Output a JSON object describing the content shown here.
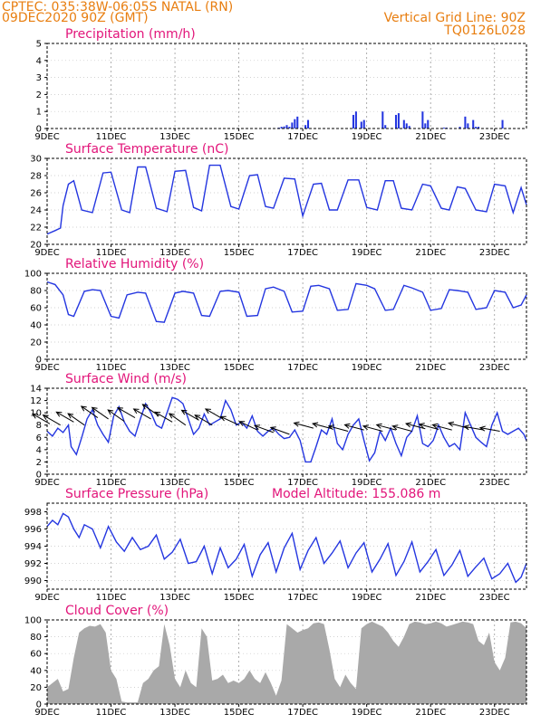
{
  "header": {
    "line1": "CPTEC:   035:38W-06:05S   NATAL (RN)",
    "line2": "09DEC2020 90Z (GMT)",
    "right1": "Vertical Grid Line: 90Z",
    "right2": "TQ0126L028"
  },
  "colors": {
    "series": "#2436e0",
    "cloud": "#a9a9a9",
    "title": "#e2157a",
    "header": "#e87e10"
  },
  "chart_data": [
    {
      "type": "bar",
      "title": "Precipitation (mm/h)",
      "x_range": [
        0,
        180
      ],
      "ylim": [
        0,
        5
      ],
      "yticks": [
        0,
        1,
        2,
        3,
        4,
        5
      ],
      "x_ticks": [
        {
          "x": 0,
          "label": "9DEC"
        },
        {
          "x": 24,
          "label": "11DEC"
        },
        {
          "x": 48,
          "label": "13DEC"
        },
        {
          "x": 72,
          "label": "15DEC"
        },
        {
          "x": 96,
          "label": "17DEC"
        },
        {
          "x": 120,
          "label": "19DEC"
        },
        {
          "x": 144,
          "label": "21DEC"
        },
        {
          "x": 168,
          "label": "23DEC"
        }
      ],
      "grid": "vertical dashed",
      "x": [
        87,
        88,
        89,
        90,
        91,
        92,
        93,
        94,
        97,
        98,
        115,
        116,
        118,
        119,
        126,
        127,
        131,
        132,
        134,
        135,
        136,
        141,
        142,
        143,
        149,
        150,
        155,
        157,
        158,
        160,
        161,
        162,
        171
      ],
      "values": [
        0.05,
        0.1,
        0.12,
        0.2,
        0.1,
        0.35,
        0.55,
        0.7,
        0.2,
        0.5,
        0.8,
        1.0,
        0.4,
        0.5,
        1.0,
        0.2,
        0.8,
        0.9,
        0.5,
        0.3,
        0.15,
        1.0,
        0.3,
        0.5,
        0.05,
        0.05,
        0.1,
        0.7,
        0.3,
        0.5,
        0.1,
        0.1,
        0.5
      ]
    },
    {
      "type": "line",
      "title": "Surface Temperature (nC)",
      "x_range": [
        0,
        180
      ],
      "ylim": [
        20,
        30
      ],
      "yticks": [
        20,
        22,
        24,
        26,
        28,
        30
      ],
      "x_ticks": [
        {
          "x": 0,
          "label": "9DEC"
        },
        {
          "x": 24,
          "label": "11DEC"
        },
        {
          "x": 48,
          "label": "13DEC"
        },
        {
          "x": 72,
          "label": "15DEC"
        },
        {
          "x": 96,
          "label": "17DEC"
        },
        {
          "x": 120,
          "label": "19DEC"
        },
        {
          "x": 144,
          "label": "21DEC"
        },
        {
          "x": 168,
          "label": "23DEC"
        }
      ],
      "grid": "vertical dashed",
      "x": [
        0,
        3,
        5,
        6,
        8,
        10,
        13,
        17,
        21,
        24,
        28,
        31,
        34,
        37,
        41,
        45,
        48,
        52,
        55,
        58,
        61,
        65,
        69,
        72,
        76,
        79,
        82,
        85,
        89,
        93,
        96,
        100,
        103,
        106,
        109,
        113,
        117,
        120,
        124,
        127,
        130,
        133,
        137,
        141,
        144,
        148,
        151,
        154,
        157,
        161,
        165,
        168,
        172,
        175,
        178,
        180
      ],
      "values": [
        21.2,
        21.6,
        21.9,
        24.5,
        27.0,
        27.4,
        24.0,
        23.7,
        28.3,
        28.4,
        24.0,
        23.7,
        29.0,
        29.0,
        24.2,
        23.8,
        28.5,
        28.6,
        24.3,
        23.9,
        29.2,
        29.2,
        24.4,
        24.1,
        28.0,
        28.1,
        24.4,
        24.2,
        27.7,
        27.6,
        23.3,
        27.0,
        27.1,
        24.0,
        24.0,
        27.5,
        27.5,
        24.3,
        24.0,
        27.4,
        27.4,
        24.2,
        24.0,
        27.0,
        26.8,
        24.2,
        24.0,
        26.7,
        26.5,
        24.0,
        23.8,
        27.0,
        26.8,
        23.7,
        26.6,
        24.6
      ]
    },
    {
      "type": "line",
      "title": "Relative Humidity (%)",
      "x_range": [
        0,
        180
      ],
      "ylim": [
        0,
        100
      ],
      "yticks": [
        0,
        20,
        40,
        60,
        80,
        100
      ],
      "x_ticks": [
        {
          "x": 0,
          "label": "9DEC"
        },
        {
          "x": 24,
          "label": "11DEC"
        },
        {
          "x": 48,
          "label": "13DEC"
        },
        {
          "x": 72,
          "label": "15DEC"
        },
        {
          "x": 96,
          "label": "17DEC"
        },
        {
          "x": 120,
          "label": "19DEC"
        },
        {
          "x": 144,
          "label": "21DEC"
        },
        {
          "x": 168,
          "label": "23DEC"
        }
      ],
      "grid": "vertical dashed",
      "x": [
        0,
        3,
        6,
        8,
        10,
        14,
        17,
        20,
        24,
        27,
        30,
        34,
        37,
        41,
        44,
        48,
        51,
        55,
        58,
        61,
        65,
        68,
        72,
        75,
        79,
        82,
        85,
        89,
        92,
        96,
        99,
        102,
        106,
        109,
        113,
        116,
        120,
        123,
        127,
        130,
        134,
        137,
        141,
        144,
        148,
        151,
        154,
        158,
        161,
        165,
        168,
        172,
        175,
        178,
        180
      ],
      "values": [
        90,
        87,
        75,
        52,
        50,
        79,
        81,
        80,
        50,
        48,
        75,
        78,
        77,
        44,
        43,
        77,
        79,
        77,
        51,
        50,
        79,
        80,
        78,
        50,
        51,
        82,
        84,
        79,
        55,
        56,
        85,
        86,
        82,
        57,
        58,
        88,
        86,
        82,
        57,
        58,
        86,
        83,
        78,
        57,
        59,
        81,
        80,
        78,
        58,
        60,
        80,
        78,
        60,
        63,
        75
      ]
    },
    {
      "type": "line",
      "title": "Surface Wind (m/s)",
      "x_range": [
        0,
        180
      ],
      "ylim": [
        0,
        14
      ],
      "yticks": [
        0,
        2,
        4,
        6,
        8,
        10,
        12,
        14
      ],
      "x_ticks": [
        {
          "x": 0,
          "label": "9DEC"
        },
        {
          "x": 24,
          "label": "11DEC"
        },
        {
          "x": 48,
          "label": "13DEC"
        },
        {
          "x": 72,
          "label": "15DEC"
        },
        {
          "x": 96,
          "label": "17DEC"
        },
        {
          "x": 120,
          "label": "19DEC"
        },
        {
          "x": 144,
          "label": "21DEC"
        },
        {
          "x": 168,
          "label": "23DEC"
        }
      ],
      "grid": "vertical dashed",
      "x": [
        0,
        2,
        4,
        6,
        8,
        9,
        11,
        13,
        15,
        17,
        19,
        21,
        23,
        25,
        27,
        29,
        31,
        33,
        35,
        37,
        39,
        41,
        43,
        45,
        47,
        49,
        51,
        53,
        55,
        57,
        59,
        61,
        63,
        65,
        67,
        69,
        71,
        73,
        75,
        77,
        79,
        81,
        83,
        85,
        87,
        89,
        91,
        93,
        95,
        97,
        99,
        101,
        103,
        105,
        107,
        109,
        111,
        113,
        115,
        117,
        119,
        121,
        123,
        125,
        127,
        129,
        131,
        133,
        135,
        137,
        139,
        141,
        143,
        145,
        147,
        149,
        151,
        153,
        155,
        157,
        159,
        161,
        163,
        165,
        167,
        169,
        171,
        173,
        175,
        177,
        179,
        180
      ],
      "values": [
        7.0,
        6.2,
        7.5,
        6.8,
        8.0,
        4.5,
        3.2,
        6.0,
        9.0,
        10.5,
        8.0,
        6.5,
        5.2,
        9.5,
        11.0,
        8.5,
        7.0,
        6.2,
        9.0,
        11.5,
        10.0,
        8.0,
        7.5,
        10.0,
        12.5,
        12.2,
        11.5,
        9.0,
        6.5,
        7.5,
        9.8,
        8.0,
        8.5,
        9.0,
        12.0,
        10.5,
        8.0,
        8.5,
        7.5,
        9.5,
        7.0,
        6.2,
        7.0,
        7.5,
        6.5,
        5.8,
        6.0,
        7.2,
        5.5,
        2.0,
        2.0,
        4.5,
        7.2,
        6.5,
        9.0,
        5.0,
        4.0,
        6.5,
        8.0,
        9.0,
        5.5,
        2.2,
        3.5,
        7.0,
        5.5,
        7.5,
        5.0,
        3.0,
        6.0,
        7.0,
        9.5,
        5.0,
        4.5,
        5.5,
        8.0,
        6.0,
        4.5,
        5.0,
        4.0,
        10.0,
        8.0,
        6.0,
        5.2,
        4.5,
        8.0,
        10.0,
        7.0,
        6.5,
        7.0,
        7.5,
        6.5,
        5.5
      ],
      "arrows_note": "wind direction vectors",
      "arrows": [
        {
          "x": 1,
          "y": 8.2,
          "dir_deg": 150
        },
        {
          "x": 5,
          "y": 8.0,
          "dir_deg": 150
        },
        {
          "x": 10,
          "y": 8.5,
          "dir_deg": 150
        },
        {
          "x": 14,
          "y": 8.0,
          "dir_deg": 145
        },
        {
          "x": 19,
          "y": 9.2,
          "dir_deg": 145
        },
        {
          "x": 23,
          "y": 9.0,
          "dir_deg": 145
        },
        {
          "x": 29,
          "y": 8.6,
          "dir_deg": 145
        },
        {
          "x": 33,
          "y": 9.2,
          "dir_deg": 150
        },
        {
          "x": 39,
          "y": 9.0,
          "dir_deg": 150
        },
        {
          "x": 42,
          "y": 9.5,
          "dir_deg": 145
        },
        {
          "x": 47,
          "y": 8.5,
          "dir_deg": 150
        },
        {
          "x": 52,
          "y": 8.0,
          "dir_deg": 145
        },
        {
          "x": 57,
          "y": 8.8,
          "dir_deg": 150
        },
        {
          "x": 62,
          "y": 8.0,
          "dir_deg": 150
        },
        {
          "x": 66,
          "y": 9.0,
          "dir_deg": 150
        },
        {
          "x": 72,
          "y": 8.0,
          "dir_deg": 155
        },
        {
          "x": 79,
          "y": 7.2,
          "dir_deg": 155
        },
        {
          "x": 85,
          "y": 6.8,
          "dir_deg": 160
        },
        {
          "x": 91,
          "y": 6.5,
          "dir_deg": 160
        },
        {
          "x": 100,
          "y": 7.5,
          "dir_deg": 165
        },
        {
          "x": 107,
          "y": 7.4,
          "dir_deg": 165
        },
        {
          "x": 113,
          "y": 7.0,
          "dir_deg": 165
        },
        {
          "x": 119,
          "y": 7.2,
          "dir_deg": 165
        },
        {
          "x": 126,
          "y": 7.0,
          "dir_deg": 165
        },
        {
          "x": 131,
          "y": 7.2,
          "dir_deg": 165
        },
        {
          "x": 137,
          "y": 7.0,
          "dir_deg": 165
        },
        {
          "x": 142,
          "y": 7.4,
          "dir_deg": 165
        },
        {
          "x": 147,
          "y": 7.3,
          "dir_deg": 165
        },
        {
          "x": 152,
          "y": 7.2,
          "dir_deg": 165
        },
        {
          "x": 158,
          "y": 7.5,
          "dir_deg": 165
        },
        {
          "x": 164,
          "y": 7.2,
          "dir_deg": 170
        },
        {
          "x": 170,
          "y": 7.0,
          "dir_deg": 170
        }
      ]
    },
    {
      "type": "line",
      "title": "Surface Pressure (hPa)",
      "annotation": "Model Altitude: 155.086 m",
      "x_range": [
        0,
        180
      ],
      "ylim": [
        989,
        999
      ],
      "yticks": [
        990,
        992,
        994,
        996,
        998
      ],
      "x_ticks": [
        {
          "x": 0,
          "label": "9DEC"
        },
        {
          "x": 24,
          "label": "11DEC"
        },
        {
          "x": 48,
          "label": "13DEC"
        },
        {
          "x": 72,
          "label": "15DEC"
        },
        {
          "x": 96,
          "label": "17DEC"
        },
        {
          "x": 120,
          "label": "19DEC"
        },
        {
          "x": 144,
          "label": "21DEC"
        },
        {
          "x": 168,
          "label": "23DEC"
        }
      ],
      "grid": "vertical dashed",
      "x": [
        0,
        2,
        4,
        6,
        8,
        10,
        12,
        14,
        17,
        20,
        23,
        26,
        29,
        32,
        35,
        38,
        41,
        44,
        47,
        50,
        53,
        56,
        59,
        62,
        65,
        68,
        71,
        74,
        77,
        80,
        83,
        86,
        89,
        92,
        95,
        98,
        101,
        104,
        107,
        110,
        113,
        116,
        119,
        122,
        125,
        128,
        131,
        134,
        137,
        140,
        143,
        146,
        149,
        152,
        155,
        158,
        161,
        164,
        167,
        170,
        173,
        176,
        178,
        180
      ],
      "values": [
        996.3,
        997.0,
        996.5,
        997.8,
        997.4,
        996.0,
        995.0,
        996.5,
        996.0,
        993.8,
        996.3,
        994.5,
        993.4,
        995.0,
        993.6,
        994.0,
        995.3,
        992.5,
        993.3,
        994.8,
        992.0,
        992.2,
        994.0,
        990.8,
        993.8,
        991.5,
        992.5,
        994.2,
        990.5,
        993.0,
        994.4,
        991.0,
        993.8,
        995.5,
        991.3,
        993.5,
        995.0,
        992.0,
        993.2,
        994.6,
        991.5,
        993.2,
        994.4,
        991.0,
        992.5,
        994.3,
        990.6,
        992.2,
        994.5,
        991.0,
        992.2,
        993.6,
        990.6,
        991.8,
        993.5,
        990.5,
        991.6,
        992.6,
        990.2,
        990.8,
        992.0,
        989.8,
        990.4,
        992.0
      ]
    },
    {
      "type": "area",
      "title": "Cloud Cover (%)",
      "x_range": [
        0,
        180
      ],
      "ylim": [
        0,
        100
      ],
      "yticks": [
        0,
        20,
        40,
        60,
        80,
        100
      ],
      "x_ticks": [
        {
          "x": 0,
          "label": "9DEC"
        },
        {
          "x": 24,
          "label": "11DEC"
        },
        {
          "x": 48,
          "label": "13DEC"
        },
        {
          "x": 72,
          "label": "15DEC"
        },
        {
          "x": 96,
          "label": "17DEC"
        },
        {
          "x": 120,
          "label": "19DEC"
        },
        {
          "x": 144,
          "label": "21DEC"
        },
        {
          "x": 168,
          "label": "23DEC"
        }
      ],
      "grid": "vertical dashed",
      "x": [
        0,
        2,
        4,
        6,
        8,
        10,
        12,
        14,
        16,
        18,
        20,
        22,
        24,
        26,
        28,
        30,
        32,
        34,
        36,
        38,
        40,
        42,
        44,
        46,
        48,
        50,
        52,
        54,
        56,
        58,
        60,
        62,
        64,
        66,
        68,
        70,
        72,
        74,
        76,
        78,
        80,
        82,
        84,
        86,
        88,
        90,
        92,
        94,
        96,
        98,
        100,
        102,
        104,
        106,
        108,
        110,
        112,
        114,
        116,
        118,
        120,
        122,
        124,
        126,
        128,
        130,
        132,
        134,
        136,
        138,
        140,
        142,
        144,
        146,
        148,
        150,
        152,
        154,
        156,
        158,
        160,
        162,
        164,
        166,
        168,
        170,
        172,
        174,
        176,
        178,
        180
      ],
      "values": [
        20,
        25,
        30,
        15,
        18,
        55,
        85,
        90,
        93,
        92,
        95,
        85,
        40,
        30,
        3,
        2,
        2,
        2,
        25,
        30,
        40,
        45,
        95,
        70,
        30,
        20,
        40,
        25,
        20,
        90,
        80,
        28,
        30,
        35,
        25,
        28,
        25,
        30,
        40,
        30,
        25,
        38,
        25,
        10,
        28,
        95,
        90,
        85,
        88,
        90,
        96,
        97,
        95,
        65,
        30,
        20,
        35,
        25,
        18,
        90,
        95,
        98,
        95,
        92,
        85,
        75,
        68,
        80,
        95,
        98,
        97,
        95,
        96,
        98,
        96,
        92,
        94,
        96,
        98,
        97,
        95,
        75,
        70,
        85,
        50,
        40,
        55,
        97,
        98,
        96,
        90
      ]
    }
  ]
}
